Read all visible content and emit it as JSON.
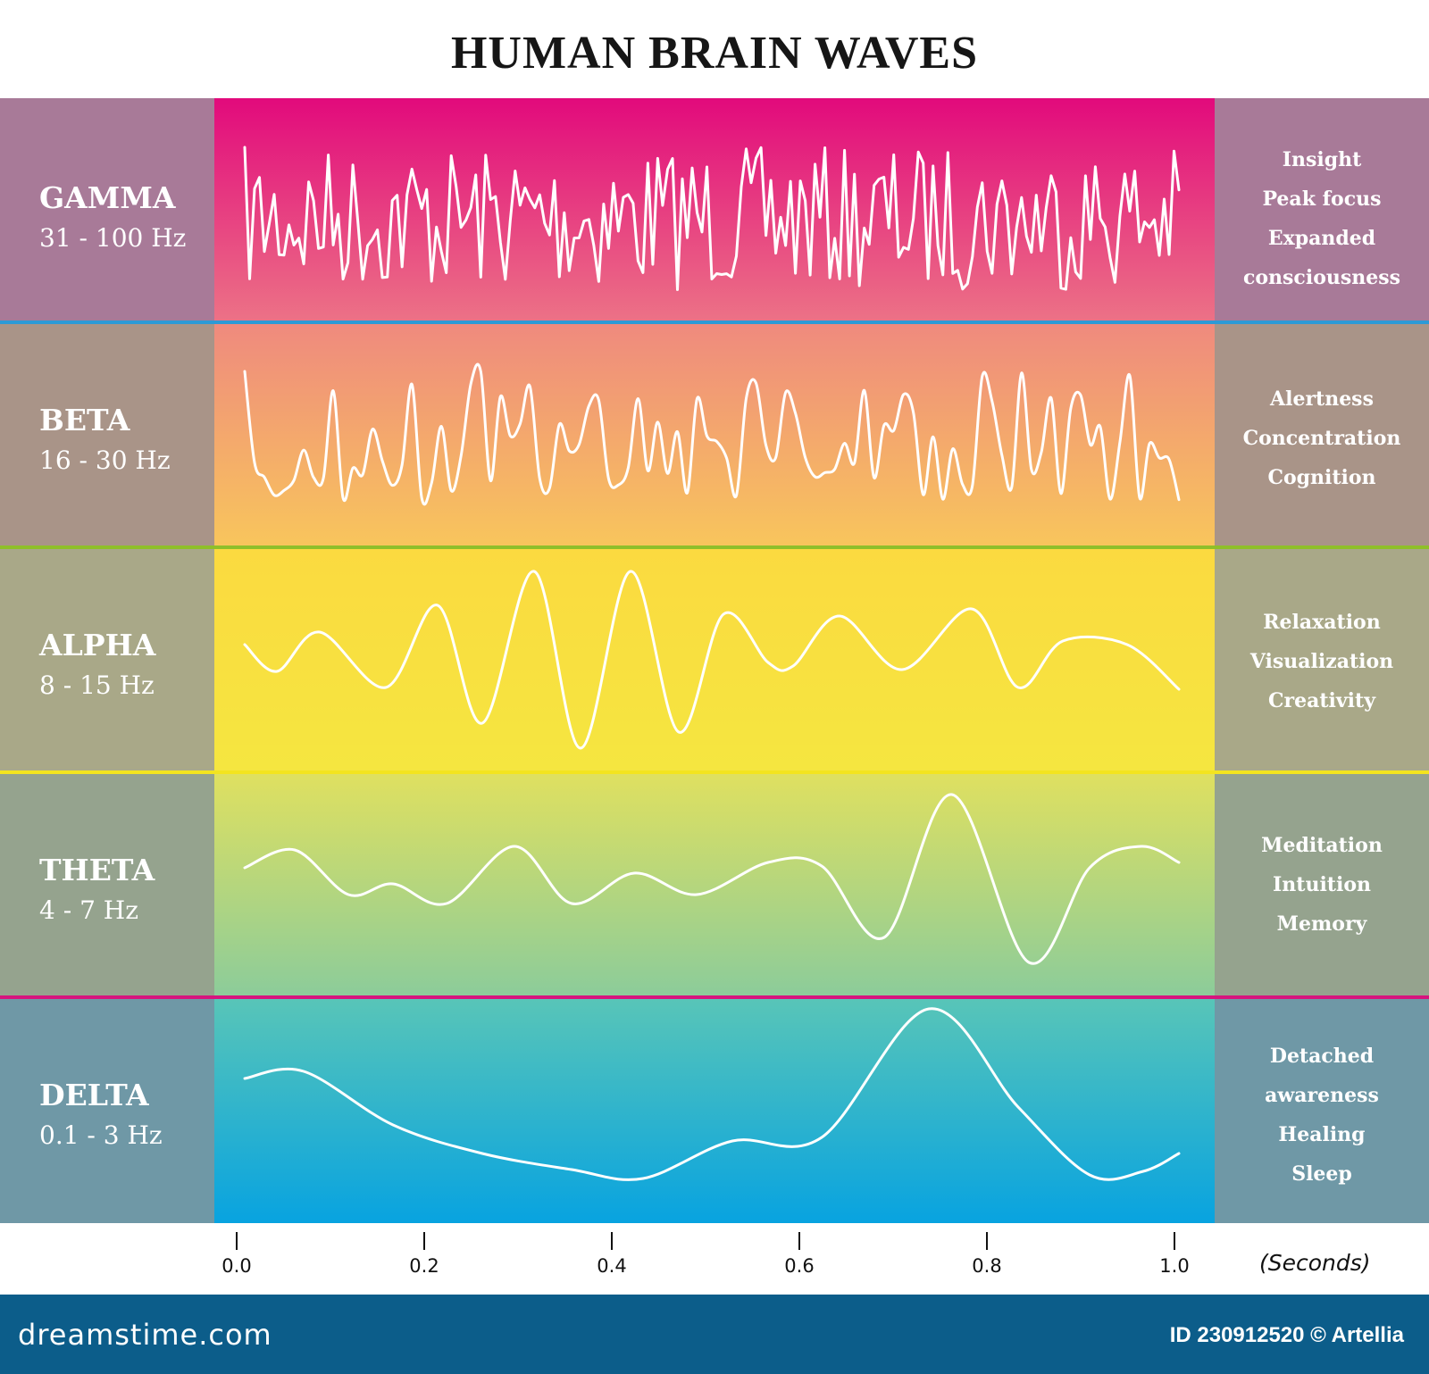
{
  "title": "HUMAN BRAIN WAVES",
  "bands": [
    {
      "name": "GAMMA",
      "frequency": "31 - 100 Hz",
      "traits": [
        "Insight",
        "Peak focus",
        "Expanded",
        "consciousness"
      ],
      "side_color": "#a87a98",
      "gradient": [
        "#e20a7c",
        "#ec7286"
      ],
      "separator_color": "#2d9ad6"
    },
    {
      "name": "BETA",
      "frequency": "16 - 30 Hz",
      "traits": [
        "Alertness",
        "Concentration",
        "Cognition"
      ],
      "side_color": "#a99488",
      "gradient": [
        "#ef8a7e",
        "#f8c55c"
      ],
      "separator_color": "#8fbf2a"
    },
    {
      "name": "ALPHA",
      "frequency": "8 - 15 Hz",
      "traits": [
        "Relaxation",
        "Visualization",
        "Creativity"
      ],
      "side_color": "#a9a888",
      "gradient": [
        "#fbda40",
        "#f5e640"
      ],
      "separator_color": "#f3e41f"
    },
    {
      "name": "THETA",
      "frequency": "4 - 7 Hz",
      "traits": [
        "Meditation",
        "Intuition",
        "Memory"
      ],
      "side_color": "#95a38e",
      "gradient": [
        "#dfe060",
        "#8ccc9a"
      ],
      "separator_color": "#d6157e"
    },
    {
      "name": "DELTA",
      "frequency": "0.1 - 3 Hz",
      "traits": [
        "Detached",
        "awareness",
        "Healing",
        "Sleep"
      ],
      "side_color": "#6f98a6",
      "gradient": [
        "#58c5b8",
        "#08a3e0"
      ],
      "separator_color": ""
    }
  ],
  "axis": {
    "ticks": [
      "0.0",
      "0.2",
      "0.4",
      "0.6",
      "0.8",
      "1.0"
    ],
    "unit": "(Seconds)"
  },
  "footer": {
    "site": "dreamstime.com",
    "id_text": "ID 230912520 © Artellia",
    "background": "#0c5d8a"
  }
}
